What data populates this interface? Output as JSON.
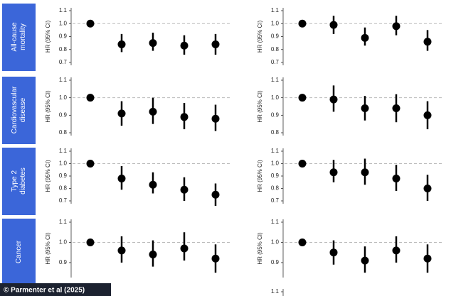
{
  "row_labels": [
    [
      "All-cause",
      "mortality"
    ],
    [
      "Cardiovascular",
      "disease"
    ],
    [
      "Type 2",
      "diabetes"
    ],
    [
      "Cancer"
    ]
  ],
  "credit": "© Parmenter et al (2025)",
  "chart_data": [
    {
      "type": "forest",
      "ylabel": "HR (95% CI)",
      "ylim": [
        0.7,
        1.1
      ],
      "yticks": [
        1.1,
        {
          "value": 1.0,
          "label": "1.0"
        },
        0.9,
        0.8,
        0.7
      ],
      "reference_line": 1.0,
      "color": "#000000",
      "values": [
        1.0,
        0.84,
        0.85,
        0.83,
        0.84
      ],
      "lower": [
        null,
        0.78,
        0.79,
        0.76,
        0.76
      ],
      "upper": [
        null,
        0.92,
        0.93,
        0.91,
        0.92
      ]
    },
    {
      "type": "forest",
      "ylabel": "HR (95% CI)",
      "ylim": [
        0.7,
        1.1
      ],
      "yticks": [
        1.1,
        {
          "value": 1.0,
          "label": "1.0"
        },
        0.9,
        0.8,
        0.7
      ],
      "reference_line": 1.0,
      "color": "#000000",
      "values": [
        1.0,
        0.99,
        0.89,
        0.98,
        0.86
      ],
      "lower": [
        null,
        0.92,
        0.83,
        0.91,
        0.79
      ],
      "upper": [
        null,
        1.06,
        0.97,
        1.06,
        0.95
      ]
    },
    {
      "type": "forest",
      "ylabel": "HR (95% CI)",
      "ylim": [
        0.8,
        1.1
      ],
      "yticks": [
        1.1,
        {
          "value": 1.0,
          "label": "1.0"
        },
        0.9,
        0.8
      ],
      "reference_line": 1.0,
      "color": "#000000",
      "values": [
        1.0,
        0.91,
        0.92,
        0.89,
        0.88
      ],
      "lower": [
        null,
        0.84,
        0.85,
        0.82,
        0.81
      ],
      "upper": [
        null,
        0.98,
        1.0,
        0.97,
        0.96
      ]
    },
    {
      "type": "forest",
      "ylabel": "HR (95% CI)",
      "ylim": [
        0.8,
        1.1
      ],
      "yticks": [
        1.1,
        {
          "value": 1.0,
          "label": "1.0"
        },
        0.9,
        0.8
      ],
      "reference_line": 1.0,
      "color": "#000000",
      "values": [
        1.0,
        0.99,
        0.94,
        0.94,
        0.9
      ],
      "lower": [
        null,
        0.92,
        0.87,
        0.86,
        0.82
      ],
      "upper": [
        null,
        1.07,
        1.01,
        1.02,
        0.98
      ]
    },
    {
      "type": "forest",
      "ylabel": "HR (95% CI)",
      "ylim": [
        0.7,
        1.1
      ],
      "yticks": [
        1.1,
        {
          "value": 1.0,
          "label": "1.0"
        },
        0.9,
        0.8,
        0.7
      ],
      "reference_line": 1.0,
      "color": "#000000",
      "values": [
        1.0,
        0.88,
        0.83,
        0.79,
        0.75
      ],
      "lower": [
        null,
        0.79,
        0.76,
        0.7,
        0.66
      ],
      "upper": [
        null,
        0.98,
        0.93,
        0.89,
        0.84
      ]
    },
    {
      "type": "forest",
      "ylabel": "HR (95% CI)",
      "ylim": [
        0.7,
        1.1
      ],
      "yticks": [
        1.1,
        {
          "value": 1.0,
          "label": "1.0"
        },
        0.9,
        0.8,
        0.7
      ],
      "reference_line": 1.0,
      "color": "#000000",
      "values": [
        1.0,
        0.93,
        0.93,
        0.88,
        0.8
      ],
      "lower": [
        null,
        0.85,
        0.83,
        0.78,
        0.7
      ],
      "upper": [
        null,
        1.03,
        1.04,
        0.99,
        0.91
      ]
    },
    {
      "type": "forest",
      "ylabel": "HR (95% CI)",
      "ylim": [
        0.84,
        1.1
      ],
      "yticks": [
        1.1,
        {
          "value": 1.0,
          "label": "1.0"
        },
        0.9
      ],
      "reference_line": 1.0,
      "color": "#000000",
      "values": [
        1.0,
        0.96,
        0.94,
        0.97,
        0.92
      ],
      "lower": [
        null,
        0.9,
        0.88,
        0.91,
        0.85
      ],
      "upper": [
        null,
        1.03,
        1.01,
        1.05,
        0.99
      ]
    },
    {
      "type": "forest",
      "ylabel": "HR (95% CI)",
      "ylim": [
        0.84,
        1.1
      ],
      "yticks": [
        1.1,
        {
          "value": 1.0,
          "label": "1.0"
        },
        0.9
      ],
      "reference_line": 1.0,
      "color": "#000000",
      "values": [
        1.0,
        0.95,
        0.91,
        0.96,
        0.92
      ],
      "lower": [
        null,
        0.89,
        0.85,
        0.9,
        0.85
      ],
      "upper": [
        null,
        1.01,
        0.98,
        1.03,
        0.99
      ]
    },
    {
      "type": "forest",
      "ylim": [
        1.0,
        1.1
      ],
      "yticks": [
        1.1
      ]
    }
  ]
}
